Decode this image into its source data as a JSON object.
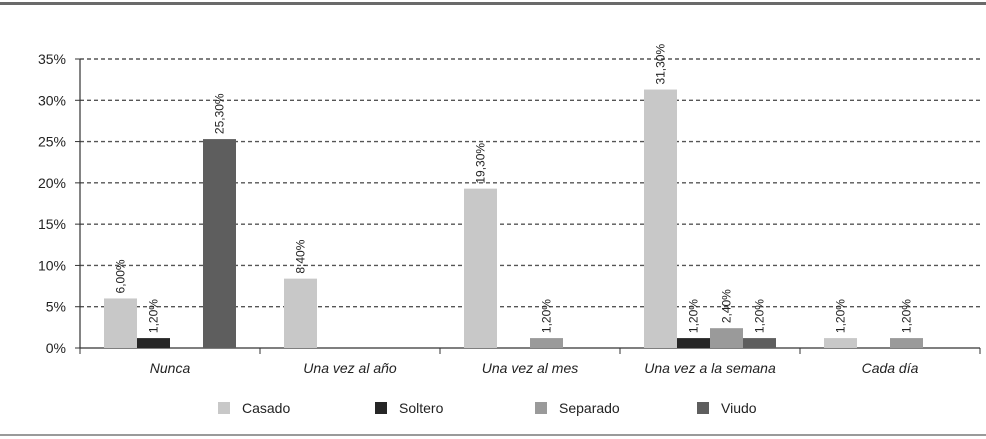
{
  "chart_data": {
    "type": "bar",
    "categories": [
      "Nunca",
      "Una vez al año",
      "Una vez al mes",
      "Una vez a la semana",
      "Cada día"
    ],
    "series": [
      {
        "name": "Casado",
        "color": "#c8c8c8",
        "values": [
          6.0,
          8.4,
          19.3,
          31.3,
          1.2
        ],
        "labels": [
          "6,00%",
          "8,40%",
          "19,30%",
          "31,30%",
          "1,20%"
        ]
      },
      {
        "name": "Soltero",
        "color": "#262626",
        "values": [
          1.2,
          null,
          null,
          1.2,
          null
        ],
        "labels": [
          "1,20%",
          null,
          null,
          "1,20%",
          null
        ]
      },
      {
        "name": "Separado",
        "color": "#9a9a9a",
        "values": [
          null,
          null,
          1.2,
          2.4,
          1.2
        ],
        "labels": [
          null,
          null,
          "1,20%",
          "2,40%",
          "1,20%"
        ]
      },
      {
        "name": "Viudo",
        "color": "#5e5e5e",
        "values": [
          25.3,
          null,
          null,
          1.2,
          null
        ],
        "labels": [
          "25,30%",
          null,
          null,
          "1,20%",
          null
        ]
      }
    ],
    "yticks": [
      "0%",
      "5%",
      "10%",
      "15%",
      "20%",
      "25%",
      "30%",
      "35%"
    ],
    "ylim": [
      0,
      35
    ],
    "grid": "dashed horizontal",
    "legend": "bottom",
    "title": "",
    "xlabel": "",
    "ylabel": ""
  }
}
